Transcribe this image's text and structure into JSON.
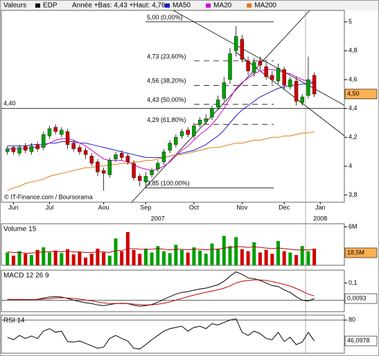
{
  "chart_data": [
    {
      "type": "candlestick",
      "title": "Valeurs",
      "symbol": "EDP",
      "subtitle": "Année +Bas: 4,43 +Haut: 4,76",
      "note": "© IT-Finance.com / Boursorama",
      "up_color": "#00a000",
      "down_color": "#d00000",
      "xlim": [
        -1,
        56
      ],
      "xticks": [
        {
          "value": 1,
          "label": "Jun"
        },
        {
          "value": 7,
          "label": "Jul"
        },
        {
          "value": 16,
          "label": "Aou"
        },
        {
          "value": 23,
          "label": "Sep"
        },
        {
          "value": 31,
          "label": "Oct"
        },
        {
          "value": 39,
          "label": "Nov"
        },
        {
          "value": 46,
          "label": "Dec"
        },
        {
          "value": 52,
          "label": "Jan"
        }
      ],
      "years": [
        {
          "value": 25,
          "label": "2007"
        },
        {
          "value": 52,
          "label": "2008"
        }
      ],
      "ylim": [
        3.75,
        5.08
      ],
      "yticks": [
        5,
        {
          "value": 4.8,
          "label": "4,8"
        },
        {
          "value": 4.6,
          "label": "4,6"
        },
        {
          "value": 4.4,
          "label": "4,4"
        },
        {
          "value": 4.2,
          "label": "4,2"
        },
        4,
        {
          "value": 3.8,
          "label": "3,8"
        }
      ],
      "open": [
        4.1,
        4.13,
        4.09,
        4.14,
        4.1,
        4.15,
        4.13,
        4.21,
        4.27,
        4.22,
        4.24,
        4.16,
        4.13,
        4.11,
        4.07,
        4.03,
        3.97,
        3.94,
        4.05,
        4.09,
        4.07,
        4.02,
        3.93,
        3.89,
        3.94,
        3.98,
        4.03,
        4.11,
        4.15,
        4.21,
        4.25,
        4.21,
        4.29,
        4.31,
        4.34,
        4.41,
        4.47,
        4.6,
        4.8,
        4.88,
        4.73,
        4.65,
        4.73,
        4.69,
        4.63,
        4.59,
        4.67,
        4.55,
        4.59,
        4.44,
        4.49,
        4.63
      ],
      "high": [
        4.14,
        4.14,
        4.15,
        4.16,
        4.16,
        4.17,
        4.24,
        4.28,
        4.29,
        4.27,
        4.26,
        4.18,
        4.15,
        4.13,
        4.09,
        4.05,
        3.99,
        4.06,
        4.1,
        4.11,
        4.09,
        4.04,
        3.95,
        3.96,
        3.99,
        4.04,
        4.12,
        4.18,
        4.22,
        4.26,
        4.27,
        4.3,
        4.34,
        4.36,
        4.42,
        4.49,
        4.62,
        4.82,
        4.97,
        4.91,
        4.76,
        4.75,
        4.76,
        4.72,
        4.66,
        4.71,
        4.69,
        4.62,
        4.62,
        4.5,
        4.76,
        4.65
      ],
      "low": [
        4.08,
        4.08,
        4.07,
        4.09,
        4.08,
        4.1,
        4.11,
        4.19,
        4.22,
        4.2,
        4.12,
        4.1,
        4.08,
        4.05,
        4.0,
        3.93,
        3.83,
        3.92,
        4.03,
        4.04,
        4.01,
        3.9,
        3.86,
        3.85,
        3.92,
        3.96,
        4.01,
        4.09,
        4.13,
        4.19,
        4.2,
        4.19,
        4.27,
        4.29,
        4.32,
        4.39,
        4.45,
        4.57,
        4.76,
        4.72,
        4.63,
        4.62,
        4.67,
        4.6,
        4.57,
        4.57,
        4.53,
        4.53,
        4.42,
        4.42,
        4.47,
        4.48
      ],
      "close": [
        4.12,
        4.1,
        4.13,
        4.11,
        4.14,
        4.12,
        4.22,
        4.26,
        4.24,
        4.25,
        4.15,
        4.12,
        4.1,
        4.08,
        4.02,
        3.96,
        3.95,
        4.04,
        4.08,
        4.06,
        4.03,
        3.92,
        3.9,
        3.93,
        3.97,
        4.02,
        4.1,
        4.16,
        4.2,
        4.24,
        4.22,
        4.28,
        4.32,
        4.33,
        4.4,
        4.46,
        4.58,
        4.78,
        4.9,
        4.74,
        4.66,
        4.72,
        4.7,
        4.62,
        4.6,
        4.68,
        4.56,
        4.6,
        4.45,
        4.48,
        4.6,
        4.5
      ],
      "series": [
        {
          "name": "MA50",
          "color": "#1c1cc8",
          "values": [
            4.14,
            4.14,
            4.14,
            4.14,
            4.15,
            4.15,
            4.15,
            4.16,
            4.16,
            4.17,
            4.17,
            4.17,
            4.16,
            4.16,
            4.15,
            4.14,
            4.13,
            4.12,
            4.11,
            4.1,
            4.09,
            4.08,
            4.07,
            4.06,
            4.06,
            4.06,
            4.06,
            4.07,
            4.08,
            4.09,
            4.1,
            4.11,
            4.13,
            4.15,
            4.18,
            4.21,
            4.25,
            4.3,
            4.35,
            4.39,
            4.42,
            4.45,
            4.48,
            4.5,
            4.52,
            4.54,
            4.55,
            4.56,
            4.56,
            4.57,
            4.57,
            4.58
          ]
        },
        {
          "name": "MA20",
          "color": "#d000d0",
          "values": [
            4.12,
            4.12,
            4.12,
            4.12,
            4.13,
            4.13,
            4.14,
            4.16,
            4.18,
            4.19,
            4.19,
            4.18,
            4.16,
            4.14,
            4.11,
            4.08,
            4.05,
            4.04,
            4.04,
            4.04,
            4.03,
            4.01,
            3.99,
            3.98,
            3.97,
            3.98,
            4.0,
            4.03,
            4.07,
            4.11,
            4.14,
            4.18,
            4.22,
            4.25,
            4.29,
            4.34,
            4.4,
            4.47,
            4.54,
            4.58,
            4.61,
            4.64,
            4.66,
            4.67,
            4.67,
            4.66,
            4.65,
            4.64,
            4.62,
            4.6,
            4.59,
            4.58
          ]
        },
        {
          "name": "MA200",
          "color": "#e07810",
          "values": [
            3.83,
            3.85,
            3.86,
            3.88,
            3.89,
            3.9,
            3.91,
            3.93,
            3.94,
            3.95,
            3.96,
            3.97,
            3.98,
            3.99,
            3.99,
            4.0,
            4.0,
            4.01,
            4.01,
            4.02,
            4.02,
            4.03,
            4.03,
            4.04,
            4.04,
            4.05,
            4.06,
            4.07,
            4.08,
            4.08,
            4.09,
            4.1,
            4.11,
            4.12,
            4.13,
            4.13,
            4.14,
            4.15,
            4.16,
            4.16,
            4.17,
            4.18,
            4.18,
            4.19,
            4.2,
            4.2,
            4.21,
            4.21,
            4.22,
            4.23,
            4.23,
            4.24
          ]
        }
      ],
      "levels": [
        {
          "value": 5.0,
          "label": "5,00 (0,00%)"
        },
        {
          "value": 4.73,
          "label": "4,73 (23,60%)"
        },
        {
          "value": 4.56,
          "label": "4,56 (38,20%)"
        },
        {
          "value": 4.43,
          "label": "4,43 (50,00%)"
        },
        {
          "value": 4.29,
          "label": "4,29 (61,80%)"
        },
        {
          "value": 3.85,
          "label": "3,85 (100,00%)"
        }
      ],
      "hline": {
        "value": 4.4,
        "label": "4,40"
      },
      "last": {
        "value": 4.5,
        "label": "4,50"
      }
    },
    {
      "type": "bar",
      "title": "Volume 15",
      "last_label": "18,5M",
      "xlim": [
        -1,
        56
      ],
      "ylim": [
        0,
        6.5
      ],
      "yticks": [
        {
          "value": 6,
          "label": "6M"
        }
      ],
      "values": [
        2.0,
        1.5,
        2.2,
        1.8,
        1.6,
        2.4,
        2.8,
        2.0,
        2.3,
        1.9,
        2.5,
        1.7,
        2.1,
        1.2,
        1.8,
        2.6,
        2.0,
        1.5,
        4.2,
        2.2,
        5.2,
        2.4,
        1.8,
        2.6,
        2.0,
        3.0,
        2.2,
        1.9,
        3.2,
        2.4,
        2.0,
        2.8,
        2.3,
        1.8,
        3.4,
        2.6,
        4.6,
        3.0,
        4.4,
        2.5,
        2.2,
        3.6,
        2.0,
        2.4,
        1.8,
        3.8,
        2.2,
        2.0,
        1.6,
        3.0,
        2.2,
        2.6
      ],
      "series": [
        {
          "color": "#c00000",
          "values": [
            2.1,
            2.0,
            2.0,
            1.9,
            1.9,
            2.0,
            2.1,
            2.1,
            2.2,
            2.1,
            2.2,
            2.1,
            2.1,
            2.0,
            2.0,
            2.1,
            2.1,
            2.0,
            2.3,
            2.3,
            2.6,
            2.6,
            2.5,
            2.5,
            2.5,
            2.6,
            2.5,
            2.4,
            2.5,
            2.5,
            2.4,
            2.5,
            2.5,
            2.4,
            2.5,
            2.5,
            2.7,
            2.8,
            2.9,
            2.9,
            2.8,
            2.9,
            2.8,
            2.7,
            2.6,
            2.7,
            2.6,
            2.5,
            2.4,
            2.4,
            2.4,
            2.5
          ]
        }
      ]
    },
    {
      "type": "line",
      "title": "MACD 12 26 9",
      "xlim": [
        -1,
        56
      ],
      "ylim": [
        -0.067,
        0.175
      ],
      "yticks": [
        {
          "value": 0.1,
          "label": "0,1"
        }
      ],
      "last": {
        "value": 0.0093,
        "label": "0,0093"
      },
      "series": [
        {
          "color": "#000000",
          "values": [
            0.005,
            0.003,
            0.004,
            0.002,
            0.003,
            0.005,
            0.012,
            0.018,
            0.02,
            0.018,
            0.01,
            0.0,
            -0.008,
            -0.015,
            -0.02,
            -0.028,
            -0.032,
            -0.026,
            -0.02,
            -0.018,
            -0.02,
            -0.03,
            -0.035,
            -0.032,
            -0.025,
            -0.012,
            0.005,
            0.02,
            0.035,
            0.045,
            0.05,
            0.058,
            0.065,
            0.07,
            0.08,
            0.09,
            0.11,
            0.14,
            0.165,
            0.15,
            0.13,
            0.125,
            0.115,
            0.1,
            0.085,
            0.08,
            0.06,
            0.045,
            0.02,
            0.0,
            -0.005,
            0.0093
          ]
        },
        {
          "color": "#c00000",
          "values": [
            0.004,
            0.004,
            0.004,
            0.003,
            0.003,
            0.004,
            0.006,
            0.009,
            0.012,
            0.014,
            0.013,
            0.01,
            0.006,
            0.001,
            -0.004,
            -0.01,
            -0.016,
            -0.019,
            -0.02,
            -0.02,
            -0.02,
            -0.023,
            -0.026,
            -0.028,
            -0.027,
            -0.024,
            -0.018,
            -0.01,
            0.0,
            0.01,
            0.02,
            0.03,
            0.038,
            0.046,
            0.053,
            0.06,
            0.07,
            0.083,
            0.1,
            0.11,
            0.115,
            0.118,
            0.118,
            0.115,
            0.108,
            0.1,
            0.092,
            0.082,
            0.068,
            0.052,
            0.035,
            0.025
          ]
        }
      ]
    },
    {
      "type": "line",
      "title": "RSI 14",
      "xlim": [
        -1,
        56
      ],
      "ylim": [
        26,
        88
      ],
      "yticks": [
        80
      ],
      "last": {
        "value": 46.0978,
        "label": "46,0978"
      },
      "series": [
        {
          "color": "#000000",
          "values": [
            52,
            48,
            55,
            50,
            54,
            50,
            62,
            66,
            60,
            62,
            45,
            44,
            46,
            42,
            38,
            34,
            36,
            50,
            55,
            50,
            46,
            34,
            33,
            40,
            48,
            55,
            62,
            66,
            68,
            70,
            62,
            68,
            70,
            66,
            74,
            72,
            76,
            80,
            82,
            60,
            55,
            62,
            58,
            50,
            48,
            60,
            45,
            52,
            40,
            44,
            60,
            46.1
          ]
        }
      ]
    }
  ]
}
